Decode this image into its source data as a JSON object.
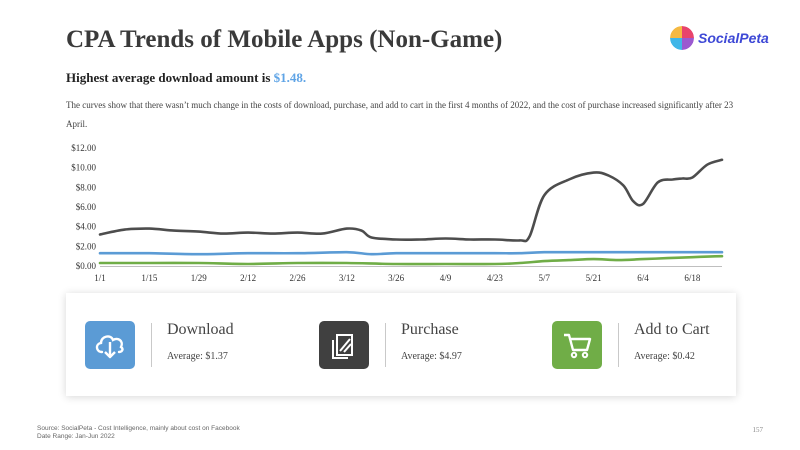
{
  "title": "CPA Trends of Mobile Apps (Non-Game)",
  "logo": {
    "text": "SocialPeta",
    "icon": "socialpeta-logo-icon"
  },
  "subtitle": {
    "prefix": "Highest average download amount is ",
    "highlight": "$1.48."
  },
  "description": "The curves show that there wasn’t much change in the costs of download, purchase, and add to cart in the first 4 months of 2022, and the cost of purchase increased significantly after 23 April.",
  "chart_data": {
    "type": "line",
    "x_labels": [
      "1/1",
      "1/15",
      "1/29",
      "2/12",
      "2/26",
      "3/12",
      "3/26",
      "4/9",
      "4/23",
      "5/7",
      "5/21",
      "6/4",
      "6/18"
    ],
    "y_tick_labels": [
      "$0.00",
      "$2.00",
      "$4.00",
      "$6.00",
      "$8.00",
      "$10.00",
      "$12.00"
    ],
    "ylim": [
      0,
      12
    ],
    "grid": false,
    "x_index_range": [
      0,
      12.6
    ],
    "colors": {
      "purchase": "#4d4d4d",
      "download": "#5b9bd5",
      "add_to_cart": "#70ad47"
    },
    "series": [
      {
        "key": "purchase",
        "x": [
          0,
          0.5,
          1,
          1.5,
          2,
          2.5,
          3,
          3.5,
          4,
          4.5,
          5,
          5.3,
          5.5,
          6,
          6.5,
          7,
          7.5,
          8,
          8.5,
          8.7,
          9,
          9.5,
          10,
          10.3,
          10.6,
          10.8,
          11,
          11.3,
          11.6,
          11.8,
          12,
          12.3,
          12.6
        ],
        "y": [
          3.2,
          3.7,
          3.8,
          3.6,
          3.5,
          3.3,
          3.4,
          3.3,
          3.4,
          3.3,
          3.8,
          3.6,
          2.9,
          2.7,
          2.7,
          2.8,
          2.7,
          2.7,
          2.6,
          3.0,
          7.2,
          8.8,
          9.5,
          9.2,
          8.2,
          6.6,
          6.3,
          8.5,
          8.8,
          8.9,
          9.0,
          10.3,
          10.8
        ]
      },
      {
        "key": "download",
        "x": [
          0,
          0.5,
          1,
          2,
          3,
          4,
          5,
          5.5,
          6,
          7,
          8,
          8.5,
          9,
          10,
          11,
          12,
          12.6
        ],
        "y": [
          1.3,
          1.3,
          1.3,
          1.2,
          1.3,
          1.3,
          1.4,
          1.2,
          1.3,
          1.3,
          1.3,
          1.3,
          1.4,
          1.4,
          1.4,
          1.4,
          1.4
        ]
      },
      {
        "key": "add_to_cart",
        "x": [
          0,
          1,
          2,
          3,
          4,
          5,
          6,
          7,
          8,
          8.5,
          9,
          9.5,
          10,
          10.5,
          11,
          11.5,
          12,
          12.6
        ],
        "y": [
          0.3,
          0.3,
          0.3,
          0.2,
          0.3,
          0.3,
          0.2,
          0.2,
          0.2,
          0.3,
          0.5,
          0.6,
          0.7,
          0.6,
          0.7,
          0.8,
          0.9,
          1.0
        ]
      }
    ]
  },
  "cards": [
    {
      "label": "Download",
      "average": "Average: $1.37",
      "color": "#5b9bd5",
      "icon": "cloud-download-icon"
    },
    {
      "label": "Purchase",
      "average": "Average: $4.97",
      "color": "#404040",
      "icon": "credit-card-icon"
    },
    {
      "label": "Add to Cart",
      "average": "Average: $0.42",
      "color": "#70ad47",
      "icon": "shopping-cart-icon"
    }
  ],
  "footer": {
    "source": "Source: SocialPeta - Cost Intelligence, mainly about cost on Facebook",
    "date_range": "Date Range: Jan-Jun 2022"
  },
  "page_number": "157"
}
